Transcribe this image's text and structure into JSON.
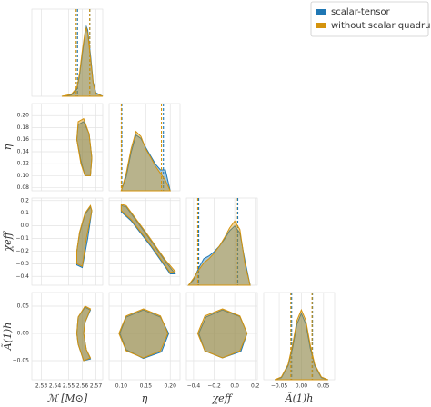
{
  "chart_data": {
    "type": "corner",
    "parameters": [
      {
        "label": "ℳ [M⊙]",
        "lim": [
          2.523,
          2.575
        ],
        "xticks": [
          2.53,
          2.54,
          2.55,
          2.56,
          2.57
        ]
      },
      {
        "label": "η",
        "lim": [
          0.075,
          0.22
        ],
        "xticks": [
          {
            "value": 0.1,
            "label": "0.10"
          },
          0.15,
          {
            "value": 0.2,
            "label": "0.20"
          }
        ],
        "yticks": [
          0.08,
          {
            "value": 0.1,
            "label": "0.10"
          },
          0.12,
          0.14,
          0.16,
          0.18,
          {
            "value": 0.2,
            "label": "0.20"
          }
        ]
      },
      {
        "label": "χeff",
        "lim": [
          -0.47,
          0.22
        ],
        "xticks": [
          {
            "value": -0.4,
            "label": "−0.4"
          },
          {
            "value": -0.2,
            "label": "−0.2"
          },
          {
            "value": 0,
            "label": "0.0"
          },
          0.2
        ],
        "yticks": [
          {
            "value": -0.4,
            "label": "−0.4"
          },
          {
            "value": -0.3,
            "label": "−0.3"
          },
          {
            "value": -0.2,
            "label": "−0.2"
          },
          {
            "value": -0.1,
            "label": "−0.1"
          },
          {
            "value": 0,
            "label": "0.0"
          },
          0.1,
          0.2
        ]
      },
      {
        "label": "Ã(1)h",
        "lim": [
          -0.085,
          0.075
        ],
        "xticks": [
          {
            "value": -0.05,
            "label": "−0.05"
          },
          {
            "value": 0,
            "label": "0.00"
          },
          0.05
        ],
        "yticks": [
          {
            "value": -0.05,
            "label": "−0.05"
          },
          {
            "value": 0,
            "label": "0.00"
          },
          0.05
        ]
      }
    ],
    "series": [
      {
        "name": "scalar-tensor",
        "color": "#1f77b4",
        "marginals": [
          {
            "x": [
              2.545,
              2.552,
              2.556,
              2.558,
              2.56,
              2.562,
              2.563,
              2.564,
              2.566,
              2.568,
              2.57,
              2.575
            ],
            "y": [
              0,
              0.02,
              0.1,
              0.3,
              0.6,
              0.9,
              1.0,
              0.95,
              0.6,
              0.2,
              0.05,
              0
            ]
          },
          {
            "x": [
              0.1,
              0.11,
              0.12,
              0.13,
              0.14,
              0.15,
              0.16,
              0.17,
              0.18,
              0.19,
              0.2
            ],
            "y": [
              0,
              0.2,
              0.55,
              0.8,
              0.75,
              0.62,
              0.5,
              0.38,
              0.3,
              0.3,
              0
            ]
          },
          {
            "x": [
              -0.45,
              -0.4,
              -0.35,
              -0.3,
              -0.25,
              -0.2,
              -0.15,
              -0.1,
              -0.05,
              0,
              0.05,
              0.1,
              0.15
            ],
            "y": [
              0,
              0.08,
              0.25,
              0.38,
              0.42,
              0.48,
              0.56,
              0.66,
              0.78,
              0.85,
              0.75,
              0.35,
              0
            ]
          },
          {
            "x": [
              -0.06,
              -0.045,
              -0.03,
              -0.02,
              -0.01,
              0,
              0.01,
              0.02,
              0.03,
              0.045,
              0.06
            ],
            "y": [
              0,
              0.03,
              0.2,
              0.45,
              0.8,
              0.95,
              0.8,
              0.45,
              0.2,
              0.03,
              0
            ]
          }
        ],
        "quantiles": [
          [
            2.5565,
            2.5655
          ],
          [
            0.101,
            0.186
          ],
          [
            -0.35,
            0.03
          ],
          [
            -0.022,
            0.025
          ]
        ],
        "contours": [
          {
            "x": [
              2.557,
              2.561,
              2.565,
              2.567,
              2.566,
              2.562,
              2.559,
              2.556
            ],
            "y": [
              0.185,
              0.19,
              0.17,
              0.13,
              0.1,
              0.1,
              0.125,
              0.16
            ]
          },
          {
            "x": [
              2.556,
              2.56,
              2.564,
              2.567,
              2.566,
              2.562,
              2.558,
              2.556
            ],
            "y": [
              -0.31,
              -0.33,
              -0.1,
              0.12,
              0.15,
              0.09,
              -0.06,
              -0.2
            ]
          },
          {
            "x": [
              0.1,
              0.11,
              0.15,
              0.19,
              0.21,
              0.2,
              0.16,
              0.12,
              0.1
            ],
            "y": [
              0.16,
              0.15,
              -0.06,
              -0.28,
              -0.38,
              -0.38,
              -0.16,
              0.04,
              0.11
            ]
          },
          {
            "x": [
              2.562,
              2.566,
              2.562,
              2.561,
              2.563,
              2.566,
              2.561,
              2.557,
              2.556,
              2.557
            ],
            "y": [
              0.048,
              0.043,
              0.02,
              0,
              -0.03,
              -0.047,
              -0.05,
              -0.02,
              0,
              0.03
            ]
          },
          {
            "x": [
              0.145,
              0.18,
              0.197,
              0.182,
              0.145,
              0.11,
              0.097,
              0.11
            ],
            "y": [
              0.043,
              0.03,
              0,
              -0.034,
              -0.046,
              -0.03,
              0,
              0.03
            ]
          },
          {
            "x": [
              -0.12,
              0.05,
              0.12,
              0.06,
              -0.12,
              -0.29,
              -0.35,
              -0.28
            ],
            "y": [
              0.043,
              0.031,
              0,
              -0.033,
              -0.045,
              -0.032,
              0,
              0.03
            ]
          }
        ]
      },
      {
        "name": "without scalar quadrupole",
        "color": "#d4930d",
        "marginals": [
          {
            "x": [
              2.545,
              2.552,
              2.556,
              2.558,
              2.56,
              2.562,
              2.563,
              2.564,
              2.566,
              2.568,
              2.57,
              2.575
            ],
            "y": [
              0,
              0.03,
              0.12,
              0.33,
              0.65,
              0.92,
              0.98,
              0.9,
              0.55,
              0.18,
              0.04,
              0
            ]
          },
          {
            "x": [
              0.1,
              0.11,
              0.12,
              0.13,
              0.14,
              0.15,
              0.16,
              0.17,
              0.18,
              0.19,
              0.2
            ],
            "y": [
              0,
              0.25,
              0.6,
              0.85,
              0.78,
              0.6,
              0.48,
              0.35,
              0.25,
              0.15,
              0
            ]
          },
          {
            "x": [
              -0.45,
              -0.4,
              -0.35,
              -0.3,
              -0.25,
              -0.2,
              -0.15,
              -0.1,
              -0.05,
              0,
              0.05,
              0.1,
              0.15
            ],
            "y": [
              0,
              0.1,
              0.22,
              0.32,
              0.38,
              0.46,
              0.56,
              0.68,
              0.82,
              0.92,
              0.8,
              0.3,
              0
            ]
          },
          {
            "x": [
              -0.06,
              -0.045,
              -0.03,
              -0.02,
              -0.01,
              0,
              0.01,
              0.02,
              0.03,
              0.045,
              0.06
            ],
            "y": [
              0,
              0.04,
              0.22,
              0.5,
              0.85,
              1.0,
              0.85,
              0.5,
              0.22,
              0.04,
              0
            ]
          }
        ],
        "quantiles": [
          [
            2.5555,
            2.5655
          ],
          [
            0.1,
            0.182
          ],
          [
            -0.36,
            0.015
          ],
          [
            -0.024,
            0.024
          ]
        ],
        "contours": [
          {
            "x": [
              2.557,
              2.561,
              2.565,
              2.567,
              2.566,
              2.562,
              2.559,
              2.556
            ],
            "y": [
              0.19,
              0.195,
              0.17,
              0.13,
              0.1,
              0.1,
              0.12,
              0.16
            ]
          },
          {
            "x": [
              2.556,
              2.56,
              2.563,
              2.567,
              2.566,
              2.562,
              2.558,
              2.556
            ],
            "y": [
              -0.3,
              -0.32,
              -0.1,
              0.12,
              0.16,
              0.1,
              -0.05,
              -0.2
            ]
          },
          {
            "x": [
              0.1,
              0.11,
              0.15,
              0.19,
              0.21,
              0.2,
              0.16,
              0.12,
              0.1
            ],
            "y": [
              0.17,
              0.16,
              -0.05,
              -0.27,
              -0.36,
              -0.37,
              -0.15,
              0.05,
              0.12
            ]
          },
          {
            "x": [
              2.562,
              2.566,
              2.562,
              2.561,
              2.563,
              2.566,
              2.561,
              2.557,
              2.556,
              2.557
            ],
            "y": [
              0.05,
              0.045,
              0.02,
              0,
              -0.03,
              -0.045,
              -0.05,
              -0.02,
              0,
              0.03
            ]
          },
          {
            "x": [
              0.145,
              0.18,
              0.195,
              0.18,
              0.145,
              0.11,
              0.095,
              0.11
            ],
            "y": [
              0.045,
              0.032,
              0,
              -0.032,
              -0.045,
              -0.032,
              0,
              0.032
            ]
          },
          {
            "x": [
              -0.12,
              0.05,
              0.12,
              0.05,
              -0.12,
              -0.29,
              -0.36,
              -0.29
            ],
            "y": [
              0.045,
              0.032,
              0,
              -0.032,
              -0.045,
              -0.032,
              0,
              0.032
            ]
          }
        ]
      }
    ]
  }
}
